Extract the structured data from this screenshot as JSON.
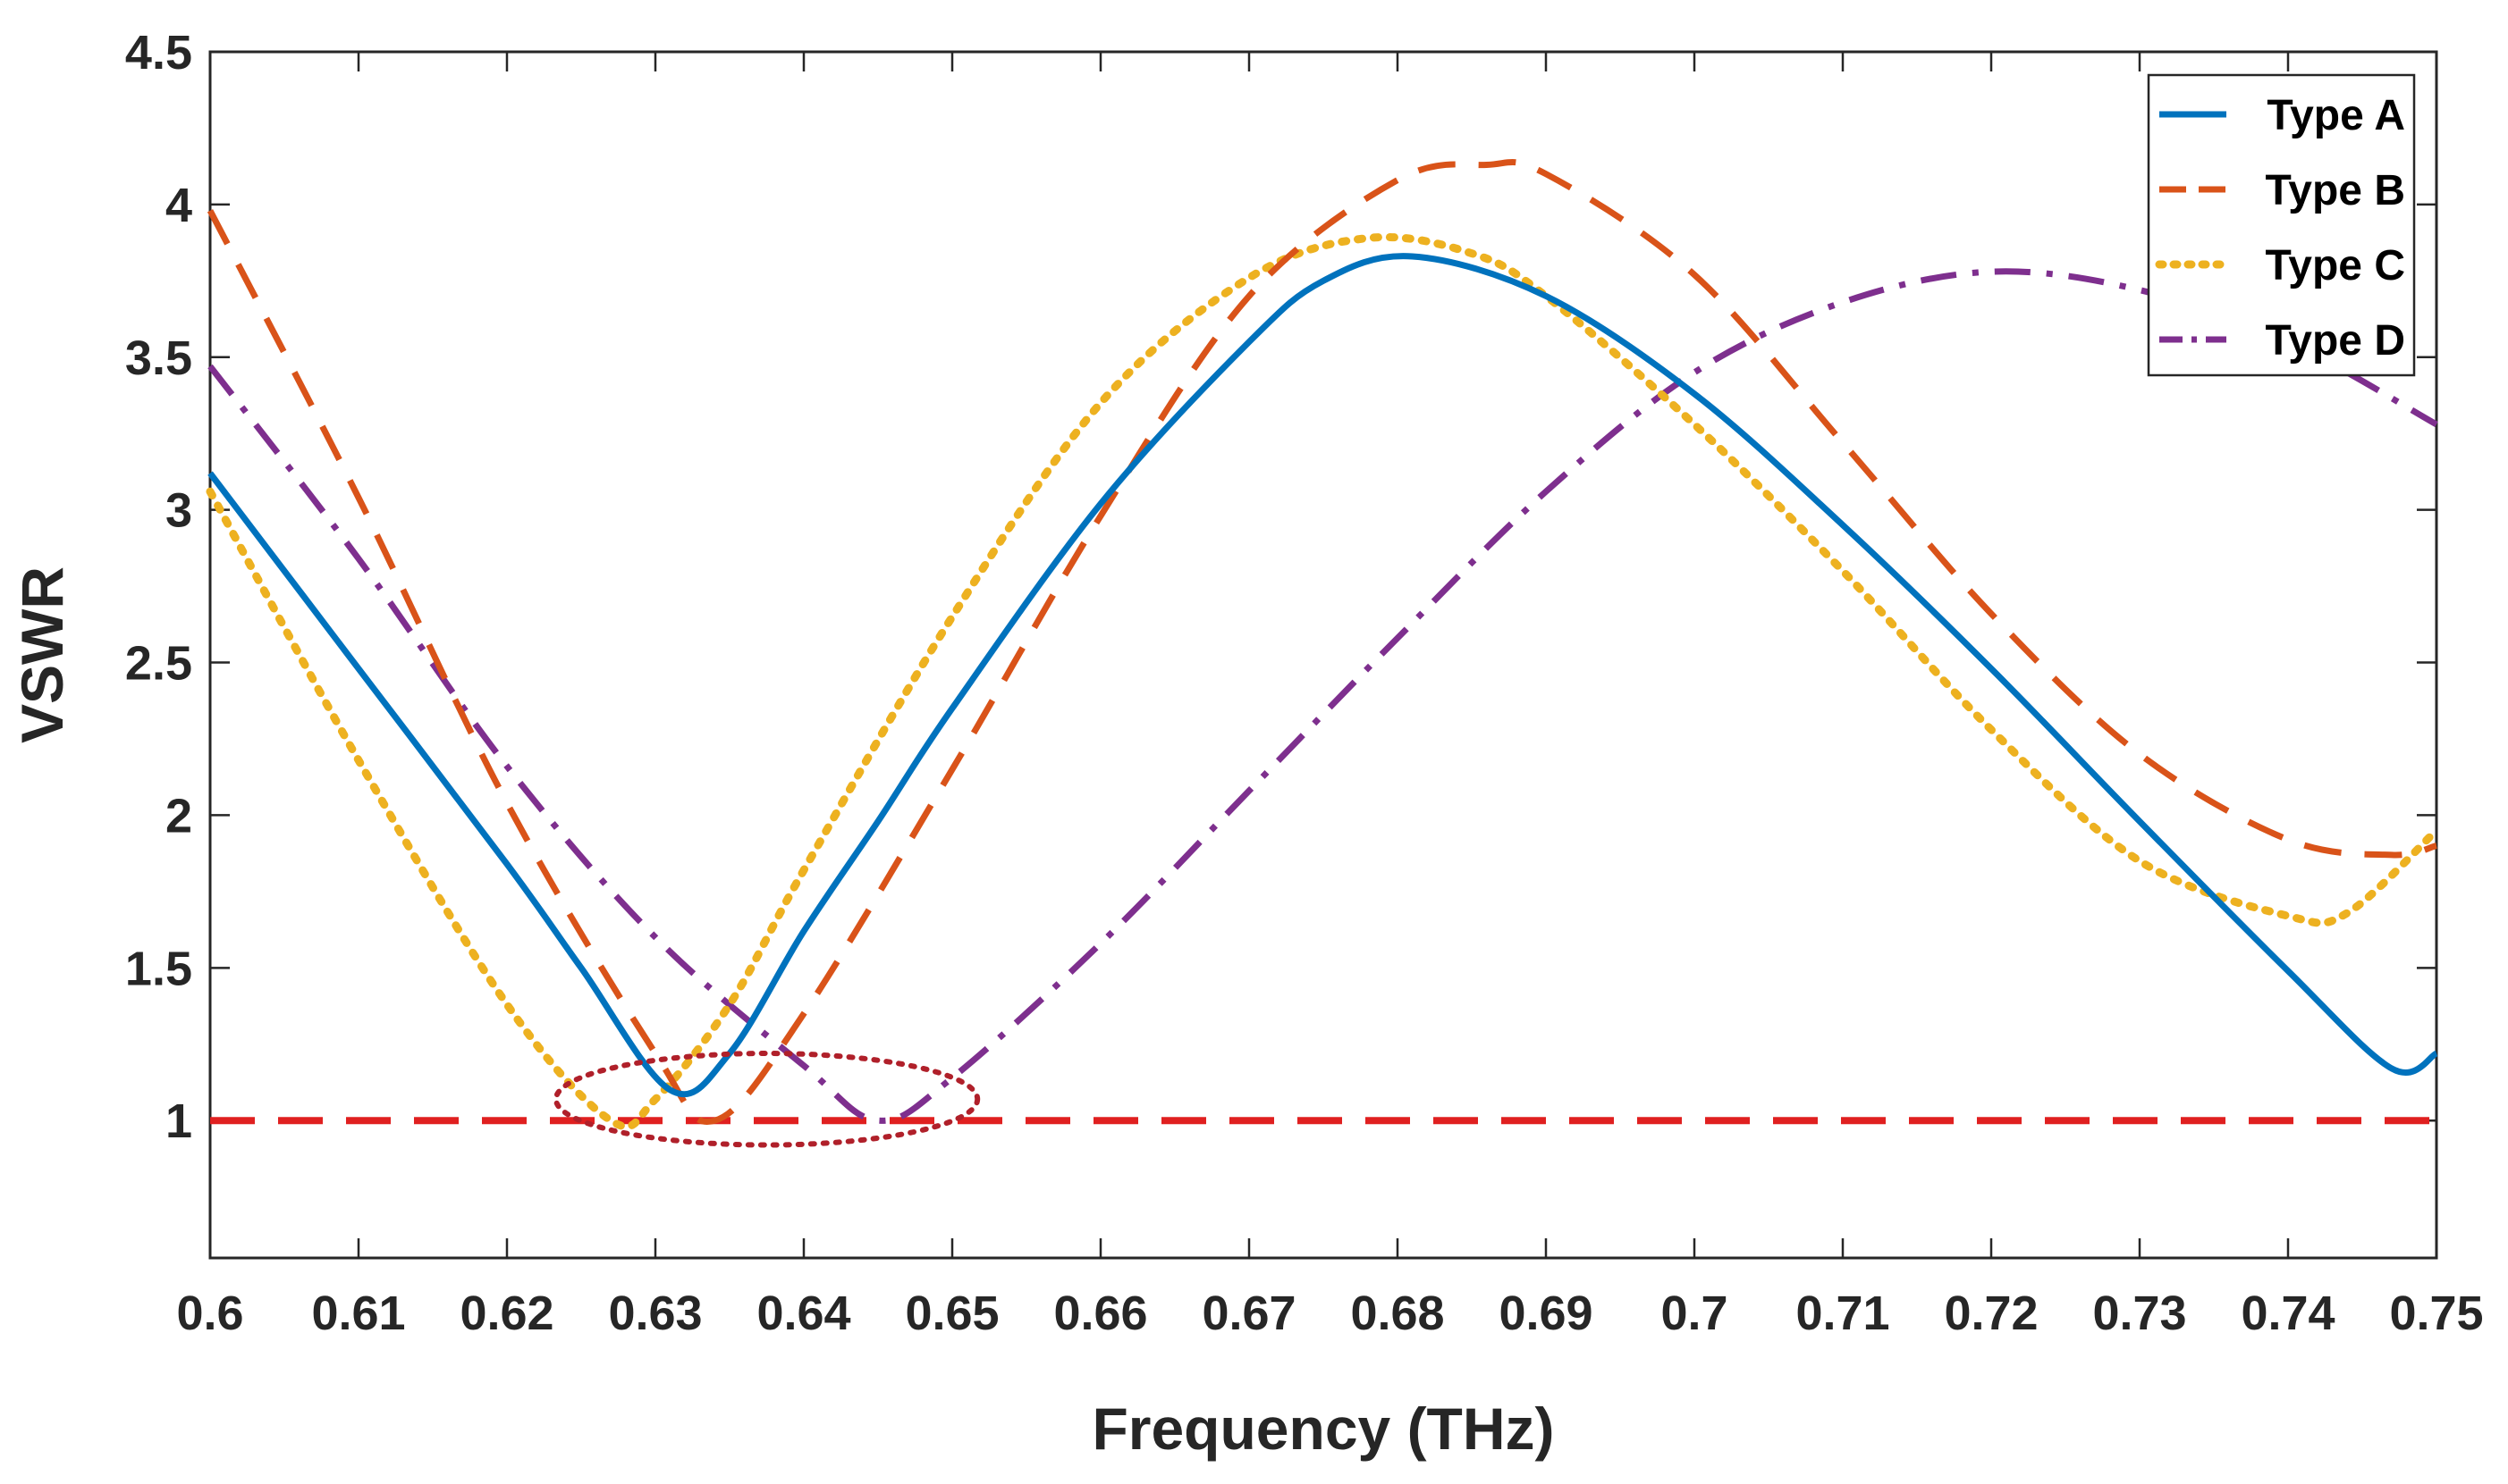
{
  "chart_data": {
    "type": "line",
    "title": "",
    "xlabel": "Frequency (THz)",
    "ylabel": "VSWR",
    "xlim": [
      0.6,
      0.75
    ],
    "ylim": [
      0.55,
      4.5
    ],
    "xticks": [
      0.6,
      0.61,
      0.62,
      0.63,
      0.64,
      0.65,
      0.66,
      0.67,
      0.68,
      0.69,
      0.7,
      0.71,
      0.72,
      0.73,
      0.74,
      0.75
    ],
    "xtick_labels": [
      "0.6",
      "0.61",
      "0.62",
      "0.63",
      "0.64",
      "0.65",
      "0.66",
      "0.67",
      "0.68",
      "0.69",
      "0.7",
      "0.71",
      "0.72",
      "0.73",
      "0.74",
      "0.75"
    ],
    "yticks": [
      1,
      1.5,
      2,
      2.5,
      3,
      3.5,
      4,
      4.5
    ],
    "ytick_labels": [
      "1",
      "1.5",
      "2",
      "2.5",
      "3",
      "3.5",
      "4",
      "4.5"
    ],
    "grid": false,
    "legend_position": "top-right",
    "series": [
      {
        "name": "Type A",
        "style": "solid",
        "color": "#0072BD",
        "x": [
          0.6,
          0.61,
          0.62,
          0.625,
          0.631,
          0.635,
          0.64,
          0.645,
          0.65,
          0.66,
          0.67,
          0.675,
          0.681,
          0.69,
          0.7,
          0.71,
          0.72,
          0.73,
          0.74,
          0.747,
          0.75
        ],
        "y": [
          3.12,
          2.48,
          1.84,
          1.5,
          1.1,
          1.22,
          1.62,
          1.98,
          2.35,
          3.02,
          3.55,
          3.75,
          3.83,
          3.7,
          3.38,
          2.95,
          2.48,
          1.98,
          1.49,
          1.17,
          1.22
        ]
      },
      {
        "name": "Type B",
        "style": "dashed",
        "color": "#D95319",
        "x": [
          0.6,
          0.61,
          0.62,
          0.63,
          0.634,
          0.64,
          0.65,
          0.66,
          0.67,
          0.68,
          0.686,
          0.69,
          0.7,
          0.71,
          0.72,
          0.73,
          0.74,
          0.747,
          0.75
        ],
        "y": [
          3.98,
          3.04,
          2.04,
          1.22,
          1.0,
          1.35,
          2.15,
          2.98,
          3.7,
          4.08,
          4.13,
          4.1,
          3.77,
          3.22,
          2.66,
          2.2,
          1.92,
          1.87,
          1.9
        ]
      },
      {
        "name": "Type C",
        "style": "dotted",
        "color": "#EDB120",
        "x": [
          0.6,
          0.61,
          0.62,
          0.627,
          0.63,
          0.635,
          0.64,
          0.65,
          0.66,
          0.67,
          0.678,
          0.685,
          0.69,
          0.7,
          0.71,
          0.72,
          0.73,
          0.74,
          0.744,
          0.75
        ],
        "y": [
          3.06,
          2.18,
          1.38,
          1.0,
          1.07,
          1.38,
          1.82,
          2.65,
          3.35,
          3.76,
          3.89,
          3.84,
          3.7,
          3.28,
          2.8,
          2.28,
          1.85,
          1.67,
          1.68,
          1.95
        ]
      },
      {
        "name": "Type D",
        "style": "dashdot",
        "color": "#7E2F8E",
        "x": [
          0.6,
          0.61,
          0.62,
          0.63,
          0.64,
          0.645,
          0.65,
          0.66,
          0.67,
          0.68,
          0.69,
          0.7,
          0.71,
          0.72,
          0.73,
          0.74,
          0.75
        ],
        "y": [
          3.47,
          2.84,
          2.16,
          1.6,
          1.18,
          1.0,
          1.14,
          1.58,
          2.08,
          2.58,
          3.06,
          3.45,
          3.68,
          3.78,
          3.72,
          3.55,
          3.28
        ]
      },
      {
        "name": "",
        "style": "dashed",
        "color": "#E02020",
        "x": [
          0.6,
          0.75
        ],
        "y": [
          1.0,
          1.0
        ]
      }
    ],
    "annotations": [
      {
        "type": "ellipse",
        "style": "dotted",
        "color": "#B0202A",
        "center": [
          0.6375,
          1.07
        ],
        "rx": 0.0142,
        "ry": 0.15
      }
    ]
  }
}
